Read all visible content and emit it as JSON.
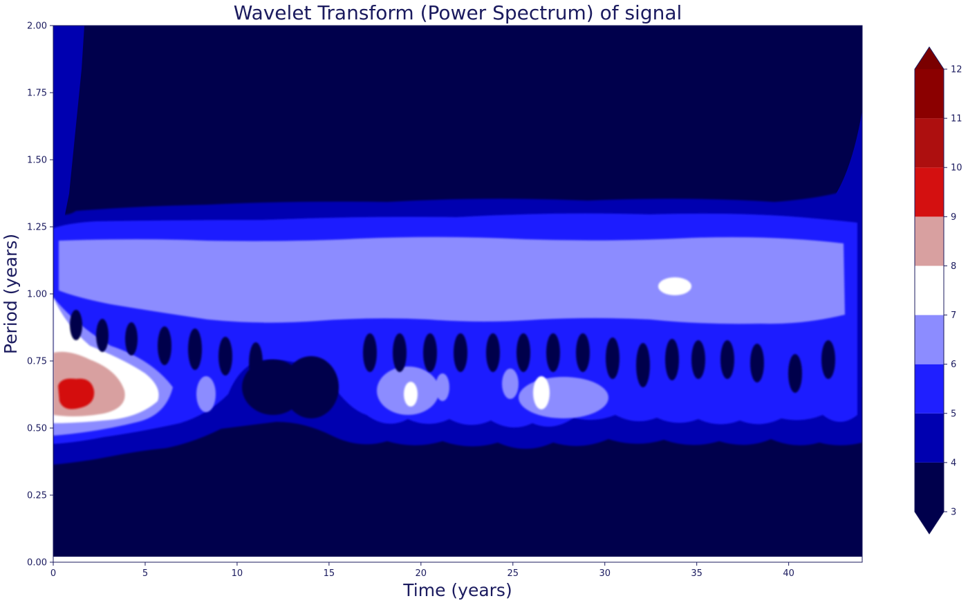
{
  "chart_data": {
    "type": "contourf",
    "title": "Wavelet Transform (Power Spectrum) of signal",
    "xlabel": "Time (years)",
    "ylabel": "Period (years)",
    "xlim": [
      0,
      44
    ],
    "ylim": [
      0,
      2.0
    ],
    "xticks": [
      "0",
      "5",
      "10",
      "15",
      "20",
      "25",
      "30",
      "35",
      "40"
    ],
    "yticks": [
      "0.00",
      "0.25",
      "0.50",
      "0.75",
      "1.00",
      "1.25",
      "1.50",
      "1.75",
      "2.00"
    ],
    "colorbar": {
      "levels": [
        3,
        4,
        5,
        6,
        7,
        8,
        9,
        10,
        11,
        12
      ],
      "ticklabels": [
        "3",
        "4",
        "5",
        "6",
        "7",
        "8",
        "9",
        "10",
        "11",
        "12"
      ],
      "colors": [
        "#00004c",
        "#0000b0",
        "#1f1fff",
        "#8c8cff",
        "#ffffff",
        "#d8a0a0",
        "#d41010",
        "#ad0f0f",
        "#8b0000"
      ],
      "extend": "both",
      "under_color": "#00004c",
      "over_color": "#7a0000"
    },
    "features": [
      {
        "label": "dominant annual band",
        "period_range": [
          0.92,
          1.18
        ],
        "time_range": [
          0,
          43.5
        ],
        "power_level": [
          6,
          7
        ]
      },
      {
        "label": "strong peak",
        "period": 0.62,
        "time": 1.2,
        "power_level": [
          9,
          10
        ]
      },
      {
        "label": "high power",
        "period": 0.62,
        "time_range": [
          0,
          4
        ],
        "power_level": [
          8,
          9
        ]
      },
      {
        "label": "white patches",
        "periods": [
          0.62,
          0.62,
          1.03
        ],
        "times": [
          19.5,
          26.5,
          33.8
        ],
        "power_level": [
          7,
          8
        ]
      }
    ]
  }
}
